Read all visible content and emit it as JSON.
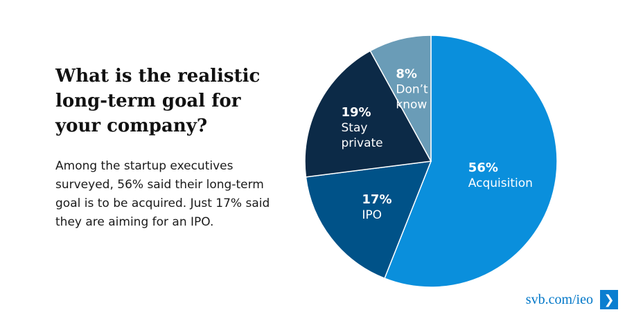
{
  "headline": {
    "title": "What is the realistic long-term goal for your company?",
    "subtitle": "Among the startup executives surveyed, 56% said their long-term goal is to be acquired. Just 17% said they are aiming for an IPO."
  },
  "chart_data": {
    "type": "pie",
    "title": "What is the realistic long-term goal for your company?",
    "slices": [
      {
        "label": "Acquisition",
        "label_lines": [
          "Acquisition"
        ],
        "value": 56,
        "pct_label": "56%",
        "color": "#0a8fdc"
      },
      {
        "label": "IPO",
        "label_lines": [
          "IPO"
        ],
        "value": 17,
        "pct_label": "17%",
        "color": "#005288"
      },
      {
        "label": "Stay private",
        "label_lines": [
          "Stay",
          "private"
        ],
        "value": 19,
        "pct_label": "19%",
        "color": "#0c2a47"
      },
      {
        "label": "Don't know",
        "label_lines": [
          "Don’t",
          "know"
        ],
        "value": 8,
        "pct_label": "8%",
        "color": "#6a9cb7"
      }
    ]
  },
  "footer": {
    "link_text": "svb.com/ieo",
    "arrow_glyph": "❯"
  }
}
